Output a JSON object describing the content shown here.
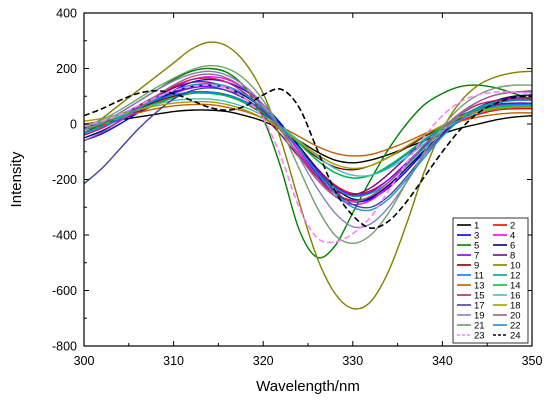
{
  "chart_data": {
    "type": "line",
    "title": "",
    "xlabel": "Wavelength/nm",
    "ylabel": "Intensity",
    "xlim": [
      300,
      350
    ],
    "ylim": [
      -800,
      400
    ],
    "xticks": [
      300,
      310,
      320,
      330,
      340,
      350
    ],
    "yticks": [
      -800,
      -600,
      -400,
      -200,
      0,
      200,
      400
    ],
    "xtick_labels": [
      "300",
      "310",
      "320",
      "330",
      "340",
      "350"
    ],
    "ytick_labels": [
      "-800",
      "-600",
      "-400",
      "-200",
      "0",
      "200",
      "400"
    ],
    "grid": false,
    "legend_position": "bottom-right",
    "x": [
      300,
      302,
      304,
      306,
      308,
      310,
      312,
      314,
      316,
      318,
      320,
      322,
      324,
      326,
      328,
      330,
      332,
      334,
      336,
      338,
      340,
      342,
      344,
      346,
      348,
      350
    ],
    "series": [
      {
        "name": "1",
        "color": "#000000",
        "dash": "solid",
        "values": [
          0,
          5,
          15,
          25,
          35,
          45,
          50,
          50,
          45,
          30,
          10,
          -20,
          -60,
          -100,
          -130,
          -140,
          -130,
          -110,
          -85,
          -60,
          -35,
          -15,
          0,
          15,
          25,
          30
        ]
      },
      {
        "name": "2",
        "color": "#ff0000",
        "dash": "solid",
        "values": [
          -20,
          -5,
          15,
          40,
          70,
          95,
          110,
          115,
          105,
          80,
          40,
          -20,
          -90,
          -160,
          -220,
          -250,
          -240,
          -200,
          -140,
          -80,
          -30,
          10,
          35,
          50,
          55,
          55
        ]
      },
      {
        "name": "3",
        "color": "#0000ff",
        "dash": "solid",
        "values": [
          -60,
          -35,
          0,
          40,
          80,
          120,
          150,
          160,
          150,
          120,
          70,
          0,
          -90,
          -180,
          -250,
          -280,
          -270,
          -230,
          -170,
          -100,
          -40,
          15,
          55,
          80,
          90,
          90
        ]
      },
      {
        "name": "4",
        "color": "#ff00ff",
        "dash": "solid",
        "values": [
          -40,
          -15,
          20,
          55,
          95,
          130,
          160,
          170,
          160,
          125,
          70,
          -10,
          -100,
          -190,
          -260,
          -290,
          -275,
          -225,
          -160,
          -95,
          -35,
          20,
          60,
          85,
          95,
          95
        ]
      },
      {
        "name": "5",
        "color": "#008000",
        "dash": "solid",
        "values": [
          -30,
          0,
          40,
          80,
          120,
          160,
          190,
          200,
          185,
          130,
          20,
          -160,
          -380,
          -480,
          -440,
          -320,
          -200,
          -90,
          0,
          70,
          110,
          135,
          140,
          130,
          110,
          90
        ]
      },
      {
        "name": "6",
        "color": "#000080",
        "dash": "solid",
        "values": [
          -50,
          -25,
          10,
          50,
          85,
          115,
          135,
          140,
          130,
          100,
          55,
          -5,
          -80,
          -160,
          -230,
          -270,
          -265,
          -220,
          -160,
          -95,
          -35,
          20,
          60,
          85,
          100,
          105
        ]
      },
      {
        "name": "7",
        "color": "#8000ff",
        "dash": "solid",
        "values": [
          -30,
          -10,
          15,
          45,
          80,
          110,
          130,
          135,
          120,
          90,
          45,
          -15,
          -90,
          -165,
          -225,
          -255,
          -245,
          -200,
          -140,
          -80,
          -25,
          20,
          50,
          70,
          75,
          75
        ]
      },
      {
        "name": "8",
        "color": "#800080",
        "dash": "solid",
        "values": [
          -20,
          0,
          30,
          65,
          100,
          130,
          150,
          150,
          130,
          90,
          30,
          -40,
          -120,
          -190,
          -240,
          -255,
          -230,
          -180,
          -120,
          -60,
          -10,
          30,
          55,
          70,
          75,
          75
        ]
      },
      {
        "name": "9",
        "color": "#800000",
        "dash": "solid",
        "values": [
          -15,
          5,
          30,
          55,
          80,
          100,
          115,
          115,
          100,
          75,
          35,
          -15,
          -70,
          -120,
          -155,
          -165,
          -150,
          -120,
          -85,
          -45,
          -10,
          20,
          40,
          55,
          60,
          60
        ]
      },
      {
        "name": "10",
        "color": "#808000",
        "dash": "solid",
        "values": [
          -20,
          20,
          70,
          120,
          170,
          220,
          270,
          295,
          280,
          220,
          110,
          -60,
          -280,
          -480,
          -610,
          -665,
          -640,
          -530,
          -360,
          -170,
          -20,
          80,
          140,
          170,
          185,
          190
        ]
      },
      {
        "name": "11",
        "color": "#0080ff",
        "dash": "solid",
        "values": [
          -10,
          10,
          35,
          60,
          85,
          105,
          115,
          115,
          105,
          80,
          40,
          -10,
          -70,
          -130,
          -175,
          -195,
          -185,
          -155,
          -110,
          -60,
          -15,
          25,
          50,
          65,
          70,
          70
        ]
      },
      {
        "name": "12",
        "color": "#00a0a0",
        "dash": "solid",
        "values": [
          -30,
          -10,
          20,
          55,
          90,
          120,
          140,
          145,
          135,
          105,
          55,
          -10,
          -90,
          -170,
          -230,
          -260,
          -250,
          -210,
          -150,
          -85,
          -25,
          25,
          60,
          80,
          90,
          90
        ]
      },
      {
        "name": "13",
        "color": "#c06000",
        "dash": "solid",
        "values": [
          0,
          10,
          25,
          40,
          55,
          65,
          70,
          70,
          60,
          45,
          20,
          -10,
          -45,
          -80,
          -105,
          -115,
          -110,
          -90,
          -65,
          -35,
          -10,
          10,
          25,
          35,
          40,
          40
        ]
      },
      {
        "name": "14",
        "color": "#00c040",
        "dash": "solid",
        "values": [
          -20,
          0,
          25,
          50,
          75,
          95,
          110,
          110,
          100,
          75,
          40,
          -10,
          -70,
          -130,
          -175,
          -195,
          -185,
          -150,
          -105,
          -55,
          -10,
          25,
          50,
          60,
          65,
          65
        ]
      },
      {
        "name": "15",
        "color": "#c02060",
        "dash": "solid",
        "values": [
          -40,
          -15,
          20,
          60,
          100,
          135,
          160,
          165,
          150,
          110,
          50,
          -25,
          -110,
          -190,
          -250,
          -275,
          -260,
          -210,
          -145,
          -75,
          -15,
          35,
          70,
          85,
          90,
          90
        ]
      },
      {
        "name": "16",
        "color": "#40c0c0",
        "dash": "solid",
        "values": [
          -5,
          10,
          30,
          50,
          70,
          85,
          90,
          90,
          80,
          60,
          30,
          -10,
          -60,
          -115,
          -160,
          -185,
          -185,
          -160,
          -120,
          -70,
          -25,
          15,
          40,
          55,
          60,
          60
        ]
      },
      {
        "name": "17",
        "color": "#4040a0",
        "dash": "solid",
        "values": [
          -215,
          -160,
          -90,
          -20,
          40,
          90,
          120,
          130,
          120,
          90,
          45,
          -15,
          -90,
          -170,
          -240,
          -290,
          -300,
          -260,
          -190,
          -110,
          -40,
          15,
          55,
          75,
          85,
          85
        ]
      },
      {
        "name": "18",
        "color": "#a0a000",
        "dash": "solid",
        "values": [
          10,
          20,
          35,
          50,
          65,
          75,
          80,
          80,
          70,
          50,
          20,
          -20,
          -65,
          -110,
          -145,
          -160,
          -150,
          -120,
          -80,
          -40,
          -5,
          25,
          45,
          55,
          60,
          60
        ]
      },
      {
        "name": "19",
        "color": "#8080c0",
        "dash": "solid",
        "values": [
          -20,
          5,
          40,
          80,
          120,
          155,
          180,
          190,
          175,
          135,
          70,
          -15,
          -120,
          -230,
          -320,
          -370,
          -360,
          -300,
          -210,
          -110,
          -30,
          35,
          80,
          105,
          115,
          115
        ]
      },
      {
        "name": "20",
        "color": "#a06080",
        "dash": "solid",
        "values": [
          -60,
          -30,
          10,
          55,
          100,
          140,
          170,
          180,
          165,
          125,
          60,
          -20,
          -115,
          -200,
          -260,
          -280,
          -260,
          -210,
          -145,
          -75,
          -15,
          40,
          80,
          105,
          115,
          120
        ]
      },
      {
        "name": "21",
        "color": "#70a070",
        "dash": "solid",
        "values": [
          -10,
          15,
          50,
          90,
          130,
          165,
          195,
          210,
          200,
          160,
          85,
          -20,
          -160,
          -300,
          -400,
          -430,
          -400,
          -320,
          -210,
          -100,
          -10,
          60,
          105,
          130,
          140,
          140
        ]
      },
      {
        "name": "22",
        "color": "#2090d0",
        "dash": "solid",
        "values": [
          -35,
          -10,
          20,
          55,
          90,
          120,
          140,
          145,
          135,
          105,
          55,
          -10,
          -90,
          -175,
          -250,
          -300,
          -310,
          -270,
          -200,
          -120,
          -45,
          15,
          55,
          75,
          85,
          85
        ]
      },
      {
        "name": "23",
        "color": "#ff80ff",
        "dash": "dashed",
        "values": [
          -10,
          10,
          35,
          65,
          95,
          120,
          135,
          140,
          130,
          90,
          20,
          -120,
          -300,
          -410,
          -425,
          -395,
          -335,
          -240,
          -140,
          -45,
          30,
          80,
          105,
          115,
          115,
          110
        ]
      },
      {
        "name": "24",
        "color": "#000000",
        "dash": "dashed",
        "values": [
          30,
          55,
          85,
          110,
          120,
          110,
          85,
          60,
          50,
          65,
          105,
          125,
          60,
          -90,
          -240,
          -330,
          -375,
          -350,
          -280,
          -190,
          -100,
          -20,
          40,
          75,
          95,
          100
        ]
      }
    ]
  }
}
